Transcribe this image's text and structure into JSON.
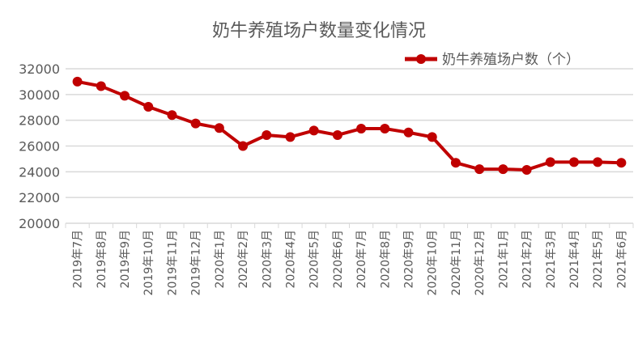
{
  "chart_data": {
    "type": "line",
    "title": "奶牛养殖场户数量变化情况",
    "xlabel": "",
    "ylabel": "",
    "ylim": [
      20000,
      32000
    ],
    "yticks": [
      "20000",
      "22000",
      "24000",
      "26000",
      "28000",
      "30000",
      "32000"
    ],
    "grid": true,
    "legend_position": "top-right",
    "categories": [
      "2019年7月",
      "2019年8月",
      "2019年9月",
      "2019年10月",
      "2019年11月",
      "2019年12月",
      "2020年1月",
      "2020年2月",
      "2020年3月",
      "2020年4月",
      "2020年5月",
      "2020年6月",
      "2020年7月",
      "2020年8月",
      "2020年9月",
      "2020年10月",
      "2020年11月",
      "2020年12月",
      "2021年1月",
      "2021年2月",
      "2021年3月",
      "2021年4月",
      "2021年5月",
      "2021年6月"
    ],
    "series": [
      {
        "name": "奶牛养殖场户数（个）",
        "color": "#c00000",
        "values": [
          31000,
          30650,
          29900,
          29050,
          28400,
          27750,
          27400,
          26000,
          26850,
          26700,
          27200,
          26850,
          27350,
          27350,
          27050,
          26700,
          24700,
          24200,
          24200,
          24150,
          24750,
          24750,
          24750,
          24700
        ]
      }
    ]
  }
}
